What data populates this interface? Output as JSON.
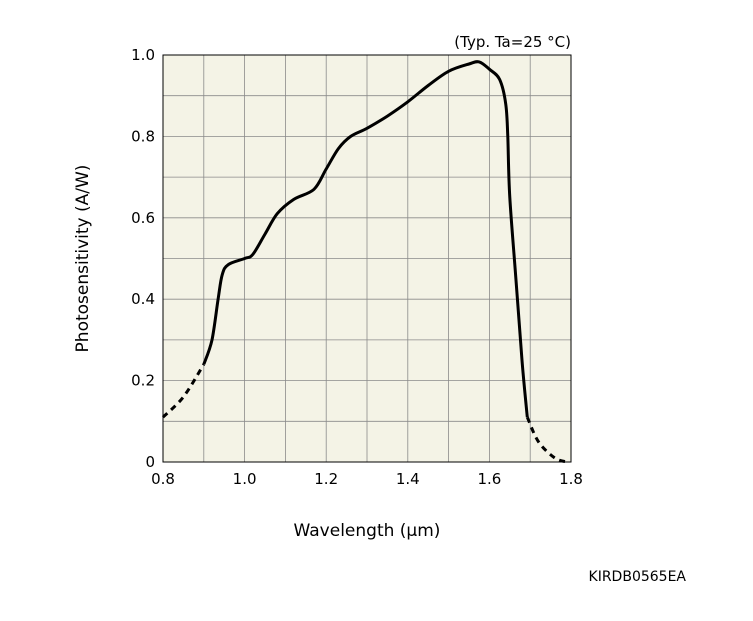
{
  "chart_data": {
    "type": "line",
    "title": "",
    "annotation": "(Typ. Ta=25 °C)",
    "xlabel": "Wavelength (μm)",
    "ylabel": "Photosensitivity (A/W)",
    "xlim": [
      0.8,
      1.8
    ],
    "ylim": [
      0,
      1.0
    ],
    "xticks": [
      0.8,
      1.0,
      1.2,
      1.4,
      1.6,
      1.8
    ],
    "xtick_labels": [
      "0.8",
      "1.0",
      "1.2",
      "1.4",
      "1.6",
      "1.8"
    ],
    "yticks": [
      0,
      0.2,
      0.4,
      0.6,
      0.8,
      1.0
    ],
    "ytick_labels": [
      "0",
      "0.2",
      "0.4",
      "0.6",
      "0.8",
      "1.0"
    ],
    "grid": true,
    "plot_background": "#f4f3e6",
    "line_color": "#000000",
    "series": [
      {
        "segments": [
          {
            "style": "dashed",
            "points": [
              [
                0.8,
                0.11
              ],
              [
                0.85,
                0.16
              ],
              [
                0.9,
                0.24
              ]
            ]
          },
          {
            "style": "solid",
            "points": [
              [
                0.9,
                0.24
              ],
              [
                0.92,
                0.3
              ],
              [
                0.935,
                0.4
              ],
              [
                0.945,
                0.46
              ],
              [
                0.96,
                0.485
              ],
              [
                1.0,
                0.5
              ],
              [
                1.02,
                0.51
              ],
              [
                1.05,
                0.56
              ],
              [
                1.08,
                0.61
              ],
              [
                1.12,
                0.645
              ],
              [
                1.17,
                0.67
              ],
              [
                1.2,
                0.72
              ],
              [
                1.23,
                0.77
              ],
              [
                1.26,
                0.8
              ],
              [
                1.3,
                0.82
              ],
              [
                1.35,
                0.85
              ],
              [
                1.4,
                0.885
              ],
              [
                1.45,
                0.925
              ],
              [
                1.5,
                0.96
              ],
              [
                1.55,
                0.978
              ],
              [
                1.575,
                0.983
              ],
              [
                1.6,
                0.965
              ],
              [
                1.625,
                0.94
              ],
              [
                1.64,
                0.88
              ],
              [
                1.645,
                0.8
              ],
              [
                1.65,
                0.65
              ],
              [
                1.665,
                0.45
              ],
              [
                1.68,
                0.25
              ],
              [
                1.69,
                0.14
              ],
              [
                1.693,
                0.11
              ]
            ]
          },
          {
            "style": "dashed",
            "points": [
              [
                1.693,
                0.11
              ],
              [
                1.72,
                0.05
              ],
              [
                1.76,
                0.01
              ],
              [
                1.79,
                0.0
              ]
            ]
          }
        ]
      }
    ]
  },
  "footer": {
    "code": "KIRDB0565EA"
  }
}
